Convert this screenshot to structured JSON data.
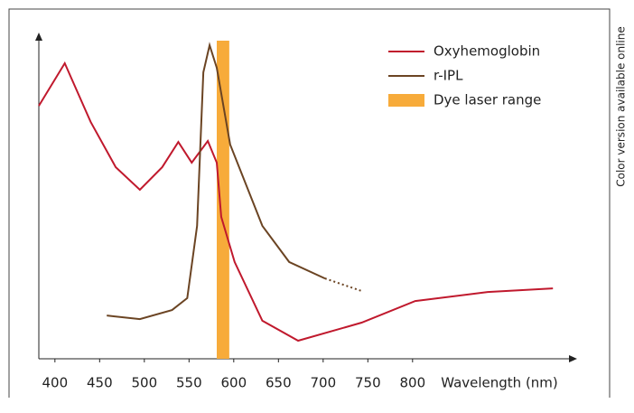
{
  "chart_data": {
    "type": "line",
    "x_label": "Wavelength (nm)",
    "side_note": "Color version available online",
    "xlim": [
      382,
      980
    ],
    "ylim": [
      0,
      100
    ],
    "xticks": [
      400,
      450,
      500,
      550,
      600,
      650,
      700,
      750,
      800
    ],
    "series": [
      {
        "name": "Oxyhemoglobin",
        "color": "#c0192d",
        "x": [
          382,
          411,
          440,
          468,
          495,
          520,
          538,
          553,
          571,
          581,
          586,
          601,
          632,
          672,
          743,
          803,
          884,
          957
        ],
        "values": [
          78.4,
          91.6,
          73.4,
          59.4,
          52.4,
          59.4,
          67.2,
          60.8,
          67.5,
          60.8,
          44,
          30,
          11.8,
          5.6,
          11.2,
          17.9,
          20.7,
          21.8
        ]
      },
      {
        "name": "r-IPL",
        "color": "#6b4423",
        "dotted_tail": true,
        "x": [
          458,
          495,
          531,
          548,
          559,
          566,
          573,
          581,
          596,
          632,
          662,
          702,
          743
        ],
        "values": [
          13.4,
          12.3,
          15.1,
          18.8,
          41.2,
          88.8,
          97.2,
          90.2,
          66.4,
          41.2,
          30,
          24.9,
          21
        ]
      }
    ],
    "bands": [
      {
        "name": "Dye laser range",
        "color": "#f7ab3a",
        "range": [
          581,
          595
        ]
      }
    ]
  }
}
